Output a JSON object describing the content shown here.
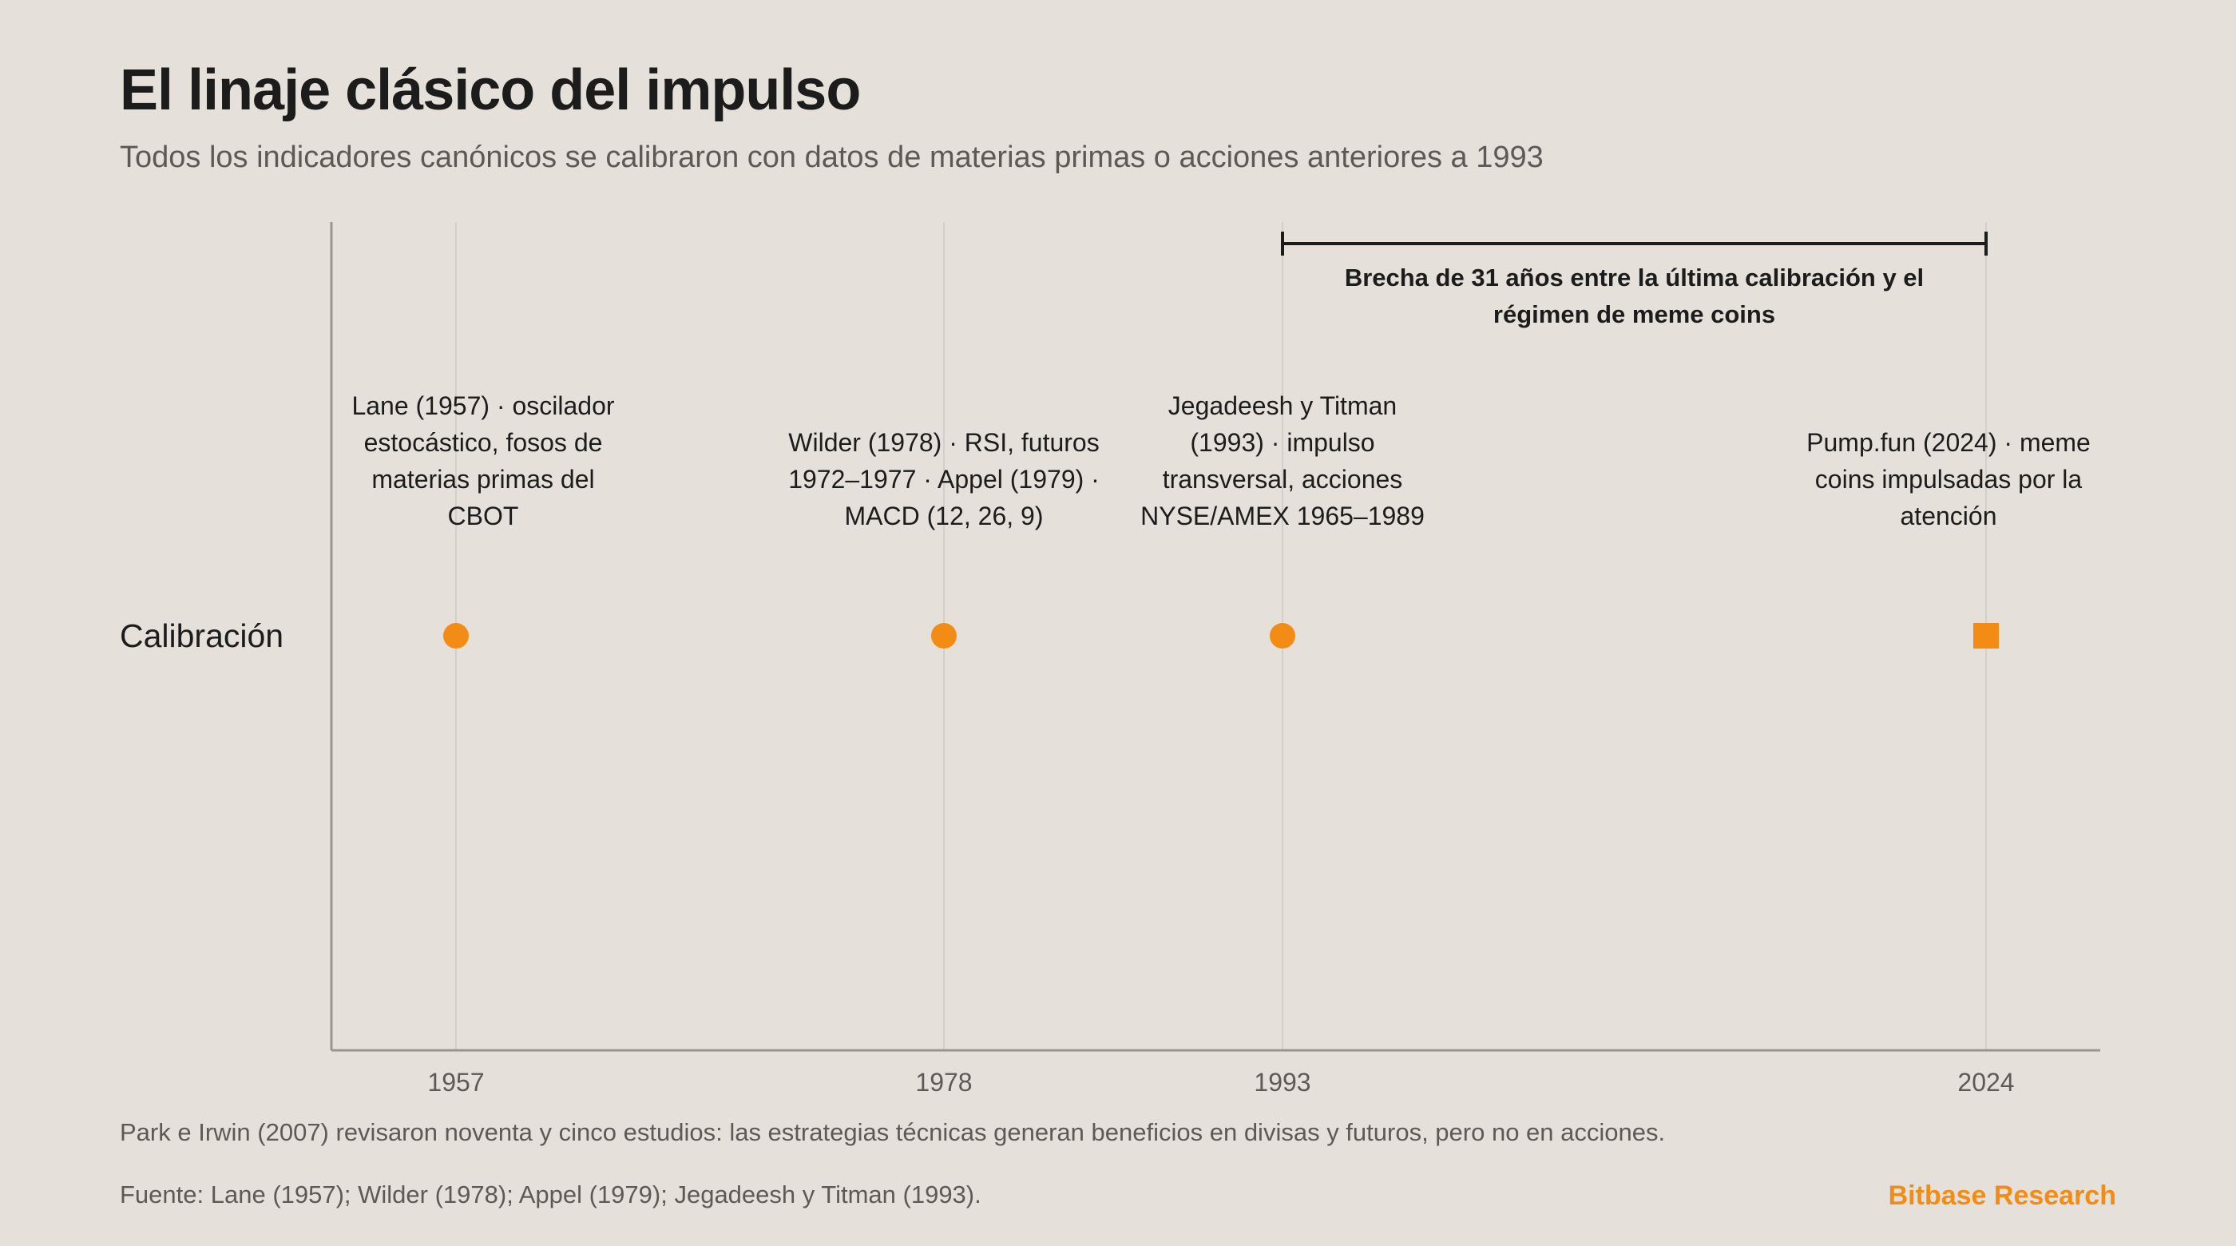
{
  "title": "El linaje clásico del impulso",
  "subtitle": "Todos los indicadores canónicos se calibraron con datos de materias primas o acciones anteriores a 1993",
  "footnote": "Park e Irwin (2007) revisaron noventa y cinco estudios: las estrategias técnicas generan beneficios en divisas y futuros, pero no en acciones.",
  "source": "Fuente: Lane (1957); Wilder (1978); Appel (1979); Jegadeesh y Titman (1993).",
  "brand": "Bitbase Research",
  "colors": {
    "background": "#e5e0da",
    "accent": "#f28c14",
    "text": "#1c1c1c",
    "muted": "#5d5a56",
    "axis": "#9a968f",
    "grid": "#d3cfc9"
  },
  "chart_data": {
    "type": "scatter",
    "row_label": "Calibración",
    "x_ticks": [
      "1957",
      "1978",
      "1993",
      "2024"
    ],
    "grid": "vertical lines at tick years",
    "points": [
      {
        "year": 1957,
        "marker": "circle",
        "label": [
          "Lane (1957) · oscilador",
          "estocástico, fosos de",
          "materias primas del",
          "CBOT"
        ]
      },
      {
        "year": 1978,
        "marker": "circle",
        "label": [
          "Wilder (1978) · RSI, futuros",
          "1972–1977 · Appel (1979) ·",
          "MACD (12, 26, 9)"
        ]
      },
      {
        "year": 1993,
        "marker": "circle",
        "label": [
          "Jegadeesh y Titman",
          "(1993) · impulso",
          "transversal, acciones",
          "NYSE/AMEX 1965–1989"
        ]
      },
      {
        "year": 2024,
        "marker": "square",
        "label": [
          "Pump.fun (2024) · meme",
          "coins impulsadas por la",
          "atención"
        ]
      }
    ],
    "annotation": {
      "from": 1993,
      "to": 2024,
      "text": [
        "Brecha de 31 años entre la última calibración y el",
        "régimen de meme coins"
      ]
    }
  }
}
